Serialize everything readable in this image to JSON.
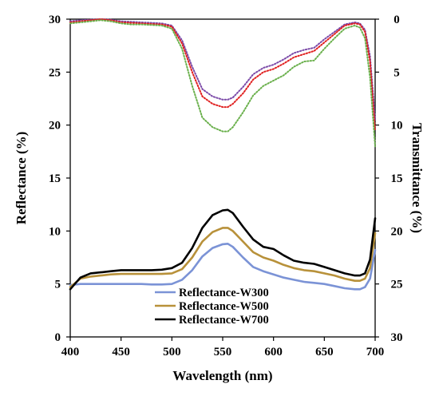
{
  "chart_data": {
    "type": "line",
    "xlabel": "Wavelength (nm)",
    "ylabel_left": "Reflectance (%)",
    "ylabel_right": "Transmittance (%)",
    "xlim": [
      400,
      700
    ],
    "ylim_left": [
      0,
      30
    ],
    "ylim_right": [
      30,
      0
    ],
    "right_axis_inverted": true,
    "x_ticks": [
      "400",
      "450",
      "500",
      "550",
      "600",
      "650",
      "700"
    ],
    "y_left_ticks": [
      "0",
      "5",
      "10",
      "15",
      "20",
      "25",
      "30"
    ],
    "y_right_ticks": [
      "0",
      "5",
      "10",
      "15",
      "20",
      "25",
      "30"
    ],
    "grid": false,
    "legend_position": "lower-center",
    "x": [
      400,
      410,
      420,
      430,
      440,
      450,
      460,
      470,
      480,
      490,
      500,
      510,
      520,
      530,
      540,
      550,
      555,
      560,
      570,
      580,
      590,
      600,
      610,
      620,
      630,
      640,
      650,
      660,
      670,
      680,
      685,
      690,
      695,
      700
    ],
    "reflectance_series": [
      {
        "name": "Reflectance-W300",
        "color": "#7b93d6",
        "values": [
          4.9,
          5.0,
          5.0,
          5.0,
          5.0,
          5.0,
          5.0,
          5.0,
          4.95,
          4.95,
          5.0,
          5.4,
          6.3,
          7.6,
          8.4,
          8.75,
          8.8,
          8.5,
          7.5,
          6.6,
          6.2,
          5.9,
          5.6,
          5.4,
          5.2,
          5.1,
          5.0,
          4.8,
          4.6,
          4.5,
          4.5,
          4.7,
          5.5,
          8.2
        ]
      },
      {
        "name": "Reflectance-W500",
        "color": "#b8913a",
        "values": [
          4.7,
          5.5,
          5.7,
          5.8,
          5.9,
          5.95,
          5.95,
          5.95,
          5.95,
          5.95,
          6.0,
          6.4,
          7.5,
          9.0,
          9.9,
          10.3,
          10.3,
          10.0,
          9.0,
          8.0,
          7.5,
          7.2,
          6.8,
          6.5,
          6.3,
          6.2,
          6.0,
          5.8,
          5.5,
          5.3,
          5.3,
          5.5,
          6.5,
          9.8
        ]
      },
      {
        "name": "Reflectance-W700",
        "color": "#000000",
        "values": [
          4.5,
          5.6,
          6.0,
          6.1,
          6.2,
          6.3,
          6.3,
          6.3,
          6.3,
          6.35,
          6.5,
          7.0,
          8.4,
          10.3,
          11.5,
          11.95,
          12.0,
          11.7,
          10.4,
          9.2,
          8.5,
          8.3,
          7.7,
          7.2,
          7.0,
          6.9,
          6.6,
          6.3,
          6.0,
          5.8,
          5.8,
          6.0,
          7.3,
          11.2
        ]
      }
    ],
    "transmittance_series": [
      {
        "color": "#7b4aa8",
        "style": "dotted",
        "values": [
          0.2,
          0.1,
          0.05,
          0.0,
          0.05,
          0.2,
          0.25,
          0.3,
          0.35,
          0.4,
          0.6,
          2.0,
          4.5,
          6.6,
          7.3,
          7.6,
          7.6,
          7.4,
          6.4,
          5.2,
          4.6,
          4.3,
          3.8,
          3.2,
          2.9,
          2.7,
          1.9,
          1.2,
          0.5,
          0.3,
          0.4,
          1.0,
          3.5,
          9.5
        ]
      },
      {
        "color": "#e02020",
        "style": "dotted",
        "values": [
          0.3,
          0.2,
          0.1,
          0.0,
          0.1,
          0.3,
          0.35,
          0.4,
          0.45,
          0.5,
          0.7,
          2.3,
          5.0,
          7.3,
          8.0,
          8.3,
          8.3,
          8.0,
          7.0,
          5.7,
          5.0,
          4.7,
          4.2,
          3.6,
          3.3,
          3.0,
          2.2,
          1.4,
          0.6,
          0.4,
          0.5,
          1.2,
          4.0,
          10.5
        ]
      },
      {
        "color": "#6ab04c",
        "style": "dotted",
        "values": [
          0.4,
          0.3,
          0.2,
          0.1,
          0.2,
          0.4,
          0.5,
          0.5,
          0.55,
          0.6,
          0.9,
          2.8,
          6.3,
          9.3,
          10.2,
          10.6,
          10.6,
          10.2,
          8.8,
          7.2,
          6.3,
          5.8,
          5.3,
          4.5,
          4.0,
          3.9,
          2.8,
          1.8,
          0.9,
          0.6,
          0.8,
          1.8,
          5.5,
          12.0
        ]
      }
    ]
  }
}
